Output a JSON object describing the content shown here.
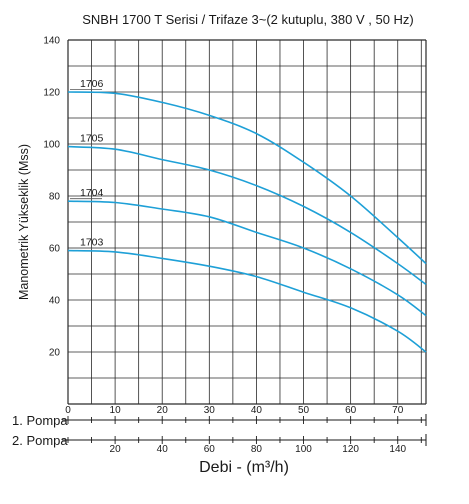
{
  "chart_data": {
    "type": "line",
    "title": "SNBH 1700 T Serisi / Trifaze 3~(2 kutuplu, 380 V , 50 Hz)",
    "ylabel": "Manometrik Yükseklik (Mss)",
    "xlabel": "Debi - (m³/h)",
    "ylim": [
      0,
      140
    ],
    "yticks": [
      20,
      40,
      60,
      80,
      100,
      120,
      140
    ],
    "grid": true,
    "axes": [
      {
        "name": "1. Pompa",
        "xlim": [
          0,
          76
        ],
        "ticks": [
          0,
          10,
          20,
          30,
          40,
          50,
          60,
          70
        ]
      },
      {
        "name": "2. Pompa",
        "xlim": [
          0,
          152
        ],
        "ticks": [
          20,
          40,
          60,
          80,
          100,
          120,
          140
        ]
      }
    ],
    "series": [
      {
        "name": "1706",
        "color": "#1ea0d7",
        "x": [
          0,
          10,
          20,
          30,
          40,
          50,
          60,
          70,
          76
        ],
        "y": [
          120,
          119.5,
          116,
          111,
          104,
          93,
          80,
          64,
          54
        ]
      },
      {
        "name": "1705",
        "color": "#1ea0d7",
        "x": [
          0,
          10,
          20,
          30,
          40,
          50,
          60,
          70,
          76
        ],
        "y": [
          99,
          98,
          94,
          90,
          84,
          76,
          66,
          54,
          46
        ]
      },
      {
        "name": "1704",
        "color": "#1ea0d7",
        "x": [
          0,
          10,
          20,
          30,
          40,
          50,
          60,
          70,
          76
        ],
        "y": [
          78,
          77.5,
          75,
          72,
          66,
          60,
          52,
          42,
          34
        ]
      },
      {
        "name": "1703",
        "color": "#1ea0d7",
        "x": [
          0,
          10,
          20,
          30,
          40,
          50,
          60,
          70,
          76
        ],
        "y": [
          59,
          58.5,
          56,
          53,
          49,
          43,
          37,
          28,
          20
        ]
      }
    ]
  }
}
